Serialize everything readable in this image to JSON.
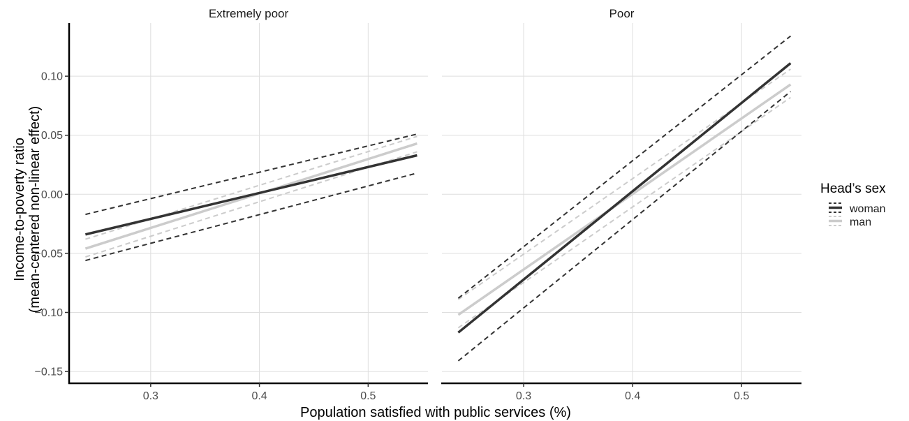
{
  "chart_data": {
    "type": "line",
    "facets": [
      "Extremely poor",
      "Poor"
    ],
    "xlabel": "Population satisfied with public services (%)",
    "ylabel_line1": "Income-to-poverty ratio",
    "ylabel_line2": "(mean-centered non-linear effect)",
    "xlim": [
      0.225,
      0.555
    ],
    "ylim": [
      -0.16,
      0.145
    ],
    "xticks": [
      0.3,
      0.4,
      0.5
    ],
    "xtick_labels": [
      "0.3",
      "0.4",
      "0.5"
    ],
    "yticks": [
      -0.15,
      -0.1,
      -0.05,
      0.0,
      0.05,
      0.1
    ],
    "ytick_labels": [
      "−0.15",
      "−0.10",
      "−0.05",
      "0.00",
      "0.05",
      "0.10"
    ],
    "grid": true,
    "legend": {
      "title": "Head’s sex",
      "position": "right",
      "entries": [
        {
          "label": "woman",
          "color": "#333333"
        },
        {
          "label": "man",
          "color": "#cccccc"
        }
      ]
    },
    "series": [
      {
        "facet": "Extremely poor",
        "name": "woman",
        "kind": "estimate",
        "color": "#333333",
        "x": [
          0.24,
          0.545
        ],
        "y": [
          -0.034,
          0.033
        ]
      },
      {
        "facet": "Extremely poor",
        "name": "woman",
        "kind": "ci_upper",
        "color": "#333333",
        "x": [
          0.24,
          0.545
        ],
        "y": [
          -0.017,
          0.051
        ]
      },
      {
        "facet": "Extremely poor",
        "name": "woman",
        "kind": "ci_lower",
        "color": "#333333",
        "x": [
          0.24,
          0.545
        ],
        "y": [
          -0.056,
          0.018
        ]
      },
      {
        "facet": "Extremely poor",
        "name": "man",
        "kind": "estimate",
        "color": "#cccccc",
        "x": [
          0.24,
          0.545
        ],
        "y": [
          -0.046,
          0.043
        ]
      },
      {
        "facet": "Extremely poor",
        "name": "man",
        "kind": "ci_upper",
        "color": "#cccccc",
        "x": [
          0.24,
          0.545
        ],
        "y": [
          -0.038,
          0.049
        ]
      },
      {
        "facet": "Extremely poor",
        "name": "man",
        "kind": "ci_lower",
        "color": "#cccccc",
        "x": [
          0.24,
          0.545
        ],
        "y": [
          -0.053,
          0.036
        ]
      },
      {
        "facet": "Poor",
        "name": "woman",
        "kind": "estimate",
        "color": "#333333",
        "x": [
          0.24,
          0.545
        ],
        "y": [
          -0.117,
          0.111
        ]
      },
      {
        "facet": "Poor",
        "name": "woman",
        "kind": "ci_upper",
        "color": "#333333",
        "x": [
          0.24,
          0.545
        ],
        "y": [
          -0.088,
          0.134
        ]
      },
      {
        "facet": "Poor",
        "name": "woman",
        "kind": "ci_lower",
        "color": "#333333",
        "x": [
          0.24,
          0.545
        ],
        "y": [
          -0.141,
          0.087
        ]
      },
      {
        "facet": "Poor",
        "name": "man",
        "kind": "estimate",
        "color": "#cccccc",
        "x": [
          0.24,
          0.545
        ],
        "y": [
          -0.102,
          0.093
        ]
      },
      {
        "facet": "Poor",
        "name": "man",
        "kind": "ci_upper",
        "color": "#cccccc",
        "x": [
          0.24,
          0.545
        ],
        "y": [
          -0.089,
          0.106
        ]
      },
      {
        "facet": "Poor",
        "name": "man",
        "kind": "ci_lower",
        "color": "#cccccc",
        "x": [
          0.24,
          0.545
        ],
        "y": [
          -0.113,
          0.082
        ]
      }
    ]
  }
}
